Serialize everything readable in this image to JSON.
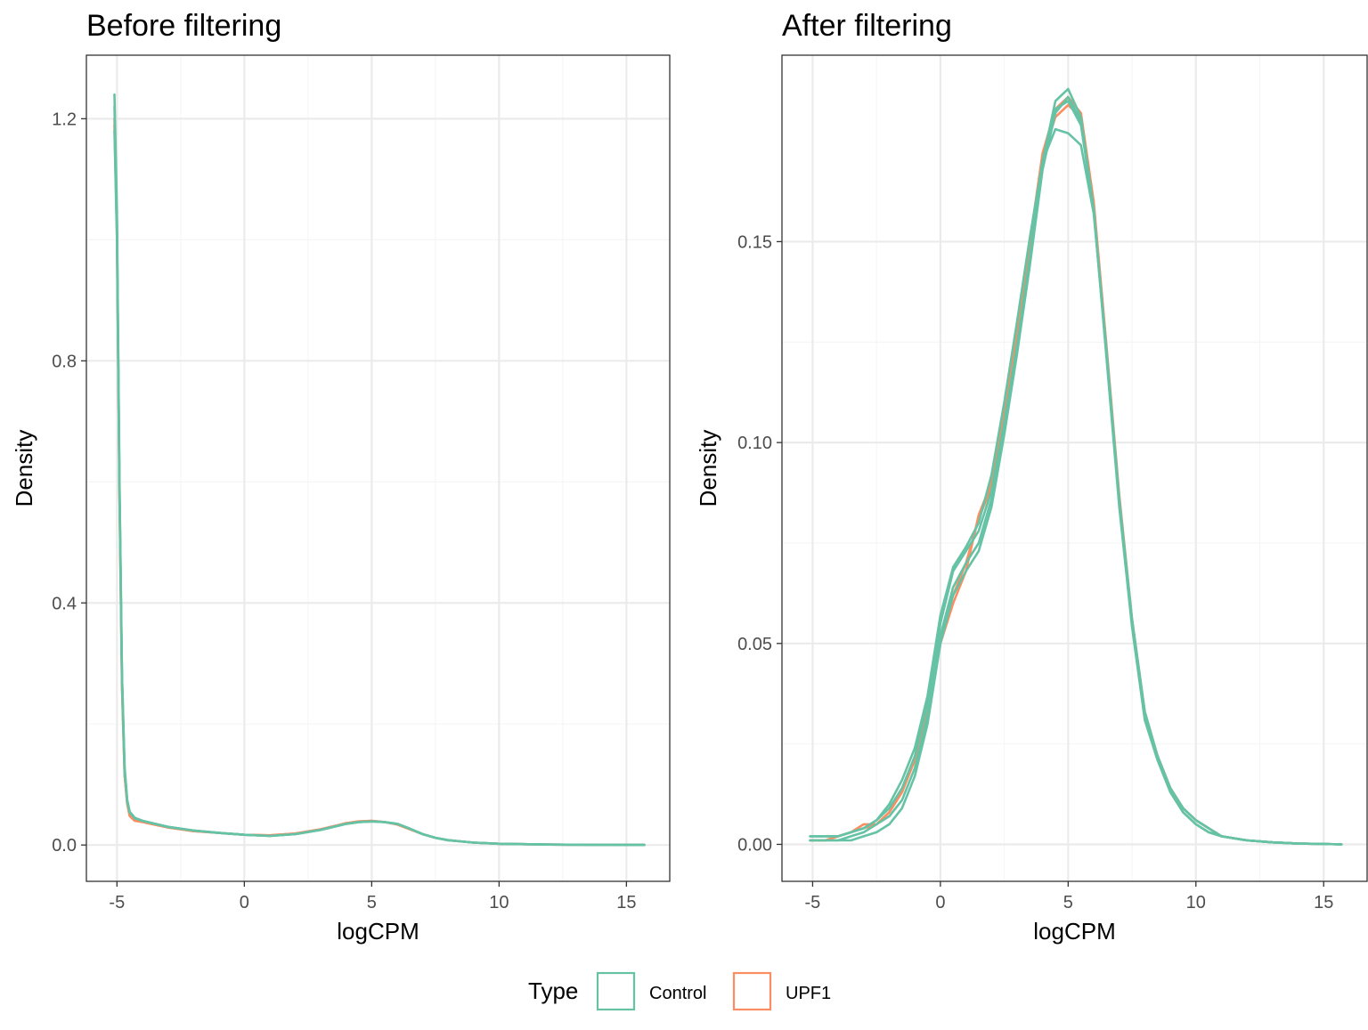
{
  "colors": {
    "Control": "#66c2a5",
    "UPF1": "#fc8d62",
    "grid_major": "#ebebeb",
    "grid_minor": "#f5f5f5",
    "panel_border": "#333333"
  },
  "legend": {
    "title": "Type",
    "position": "bottom",
    "items": [
      "Control",
      "UPF1"
    ]
  },
  "chart_data": [
    {
      "type": "line",
      "title": "Before filtering",
      "xlabel": "logCPM",
      "ylabel": "Density",
      "xlim": [
        -6.2,
        16.7
      ],
      "ylim": [
        -0.06,
        1.305
      ],
      "xticks": [
        -5,
        0,
        5,
        10,
        15
      ],
      "xtick_labels": [
        "-5",
        "0",
        "5",
        "10",
        "15"
      ],
      "yticks": [
        0.0,
        0.4,
        0.8,
        1.2
      ],
      "ytick_labels": [
        "0.0",
        "0.4",
        "0.8",
        "1.2"
      ],
      "grid": true,
      "series": [
        {
          "group": "Control",
          "x": [
            -5.1,
            -5.0,
            -4.9,
            -4.8,
            -4.7,
            -4.6,
            -4.5,
            -4.3,
            -4.0,
            -3.0,
            -2.0,
            -1.0,
            0.0,
            1.0,
            2.0,
            3.0,
            4.0,
            4.5,
            5.0,
            5.5,
            6.0,
            6.5,
            7.0,
            7.5,
            8.0,
            9.0,
            10.0,
            12.0,
            14.0,
            15.7
          ],
          "y": [
            1.24,
            1.05,
            0.6,
            0.28,
            0.13,
            0.075,
            0.055,
            0.045,
            0.04,
            0.03,
            0.024,
            0.02,
            0.017,
            0.015,
            0.018,
            0.025,
            0.035,
            0.038,
            0.039,
            0.038,
            0.035,
            0.027,
            0.018,
            0.012,
            0.008,
            0.004,
            0.002,
            0.0008,
            0.0003,
            0.0001
          ]
        },
        {
          "group": "Control",
          "x": [
            -5.1,
            -5.0,
            -4.9,
            -4.8,
            -4.7,
            -4.6,
            -4.5,
            -4.3,
            -4.0,
            -3.0,
            -2.0,
            -1.0,
            0.0,
            1.0,
            2.0,
            3.0,
            4.0,
            4.5,
            5.0,
            5.5,
            6.0,
            6.5,
            7.0,
            7.5,
            8.0,
            9.0,
            10.0,
            12.0,
            14.0,
            15.7
          ],
          "y": [
            1.18,
            1.0,
            0.58,
            0.27,
            0.12,
            0.072,
            0.054,
            0.044,
            0.04,
            0.03,
            0.024,
            0.02,
            0.017,
            0.015,
            0.018,
            0.025,
            0.035,
            0.038,
            0.039,
            0.038,
            0.035,
            0.027,
            0.018,
            0.012,
            0.008,
            0.004,
            0.002,
            0.0008,
            0.0003,
            0.0001
          ]
        },
        {
          "group": "Control",
          "x": [
            -5.1,
            -5.0,
            -4.9,
            -4.8,
            -4.7,
            -4.6,
            -4.5,
            -4.3,
            -4.0,
            -3.0,
            -2.0,
            -1.0,
            0.0,
            1.0,
            2.0,
            3.0,
            4.0,
            4.5,
            5.0,
            5.5,
            6.0,
            6.5,
            7.0,
            7.5,
            8.0,
            9.0,
            10.0,
            12.0,
            14.0,
            15.7
          ],
          "y": [
            1.22,
            1.03,
            0.59,
            0.28,
            0.125,
            0.074,
            0.055,
            0.045,
            0.04,
            0.03,
            0.024,
            0.02,
            0.017,
            0.015,
            0.018,
            0.025,
            0.035,
            0.038,
            0.039,
            0.038,
            0.035,
            0.027,
            0.018,
            0.012,
            0.008,
            0.004,
            0.002,
            0.0008,
            0.0003,
            0.0001
          ]
        },
        {
          "group": "UPF1",
          "x": [
            -5.1,
            -5.0,
            -4.9,
            -4.8,
            -4.7,
            -4.6,
            -4.5,
            -4.3,
            -4.0,
            -3.0,
            -2.0,
            -1.0,
            0.0,
            1.0,
            2.0,
            3.0,
            4.0,
            4.5,
            5.0,
            5.5,
            6.0,
            6.5,
            7.0,
            7.5,
            8.0,
            9.0,
            10.0,
            12.0,
            14.0,
            15.7
          ],
          "y": [
            1.2,
            1.02,
            0.57,
            0.26,
            0.115,
            0.068,
            0.048,
            0.04,
            0.038,
            0.029,
            0.023,
            0.02,
            0.017,
            0.016,
            0.019,
            0.026,
            0.036,
            0.039,
            0.04,
            0.038,
            0.034,
            0.026,
            0.018,
            0.012,
            0.008,
            0.004,
            0.002,
            0.0008,
            0.0003,
            0.0001
          ]
        },
        {
          "group": "UPF1",
          "x": [
            -5.1,
            -5.0,
            -4.9,
            -4.8,
            -4.7,
            -4.6,
            -4.5,
            -4.3,
            -4.0,
            -3.0,
            -2.0,
            -1.0,
            0.0,
            1.0,
            2.0,
            3.0,
            4.0,
            4.5,
            5.0,
            5.5,
            6.0,
            6.5,
            7.0,
            7.5,
            8.0,
            9.0,
            10.0,
            12.0,
            14.0,
            15.7
          ],
          "y": [
            1.19,
            1.01,
            0.57,
            0.26,
            0.116,
            0.069,
            0.049,
            0.041,
            0.038,
            0.029,
            0.023,
            0.02,
            0.017,
            0.016,
            0.019,
            0.026,
            0.036,
            0.039,
            0.04,
            0.038,
            0.034,
            0.026,
            0.018,
            0.012,
            0.008,
            0.004,
            0.002,
            0.0008,
            0.0003,
            0.0001
          ]
        }
      ]
    },
    {
      "type": "line",
      "title": "After filtering",
      "xlabel": "logCPM",
      "ylabel": "Density",
      "xlim": [
        -6.2,
        16.7
      ],
      "ylim": [
        -0.0092,
        0.1964
      ],
      "xticks": [
        -5,
        0,
        5,
        10,
        15
      ],
      "xtick_labels": [
        "-5",
        "0",
        "5",
        "10",
        "15"
      ],
      "yticks": [
        0.0,
        0.05,
        0.1,
        0.15
      ],
      "ytick_labels": [
        "0.00",
        "0.05",
        "0.10",
        "0.15"
      ],
      "grid": true,
      "series": [
        {
          "group": "Control",
          "x": [
            -5.1,
            -4.5,
            -4.0,
            -3.5,
            -3.0,
            -2.5,
            -2.0,
            -1.5,
            -1.0,
            -0.5,
            0.0,
            0.5,
            1.0,
            1.5,
            2.0,
            2.5,
            3.0,
            3.5,
            4.0,
            4.5,
            5.0,
            5.5,
            6.0,
            6.5,
            7.0,
            7.5,
            8.0,
            8.5,
            9.0,
            9.5,
            10.0,
            10.5,
            11.0,
            12.0,
            13.0,
            14.0,
            15.0,
            15.7
          ],
          "y": [
            0.002,
            0.002,
            0.002,
            0.003,
            0.004,
            0.006,
            0.009,
            0.014,
            0.022,
            0.035,
            0.055,
            0.068,
            0.073,
            0.078,
            0.088,
            0.105,
            0.124,
            0.145,
            0.168,
            0.182,
            0.186,
            0.18,
            0.158,
            0.122,
            0.085,
            0.055,
            0.032,
            0.022,
            0.014,
            0.009,
            0.006,
            0.004,
            0.002,
            0.001,
            0.0005,
            0.0002,
            0.0001,
            0.0
          ],
          "var": [
            0.002,
            0.002,
            0.002,
            0.003,
            0.004,
            0.006,
            0.009,
            0.014,
            0.022,
            0.035,
            0.055,
            0.068,
            0.073,
            0.078,
            0.088,
            0.105,
            0.124,
            0.145,
            0.168,
            0.182,
            0.186,
            0.18,
            0.158,
            0.122,
            0.085,
            0.055,
            0.032,
            0.022,
            0.014,
            0.009,
            0.006,
            0.004,
            0.002,
            0.001,
            0.0005,
            0.0002,
            0.0001,
            0.0
          ]
        },
        {
          "group": "Control",
          "x": [
            -5.1,
            -4.5,
            -4.0,
            -3.5,
            -3.0,
            -2.5,
            -2.0,
            -1.5,
            -1.0,
            -0.5,
            0.0,
            0.5,
            1.0,
            1.5,
            2.0,
            2.5,
            3.0,
            3.5,
            4.0,
            4.5,
            5.0,
            5.5,
            6.0,
            6.5,
            7.0,
            7.5,
            8.0,
            8.5,
            9.0,
            9.5,
            10.0,
            10.5,
            11.0,
            12.0,
            13.0,
            14.0,
            15.0,
            15.7
          ],
          "y": [
            0.001,
            0.001,
            0.001,
            0.002,
            0.003,
            0.005,
            0.007,
            0.011,
            0.019,
            0.032,
            0.052,
            0.064,
            0.07,
            0.075,
            0.086,
            0.104,
            0.124,
            0.146,
            0.17,
            0.185,
            0.188,
            0.181,
            0.158,
            0.121,
            0.084,
            0.054,
            0.031,
            0.021,
            0.013,
            0.008,
            0.005,
            0.003,
            0.002,
            0.001,
            0.0005,
            0.0002,
            0.0001,
            0.0
          ]
        },
        {
          "group": "Control",
          "x": [
            -5.1,
            -4.5,
            -4.0,
            -3.5,
            -3.0,
            -2.5,
            -2.0,
            -1.5,
            -1.0,
            -0.5,
            0.0,
            0.5,
            1.0,
            1.5,
            2.0,
            2.5,
            3.0,
            3.5,
            4.0,
            4.5,
            5.0,
            5.5,
            6.0,
            6.5,
            7.0,
            7.5,
            8.0,
            8.5,
            9.0,
            9.5,
            10.0,
            10.5,
            11.0,
            12.0,
            13.0,
            14.0,
            15.0,
            15.7
          ],
          "y": [
            0.002,
            0.002,
            0.002,
            0.003,
            0.004,
            0.006,
            0.01,
            0.016,
            0.024,
            0.037,
            0.057,
            0.069,
            0.074,
            0.08,
            0.092,
            0.11,
            0.13,
            0.151,
            0.17,
            0.178,
            0.177,
            0.174,
            0.157,
            0.123,
            0.086,
            0.056,
            0.033,
            0.022,
            0.014,
            0.009,
            0.006,
            0.004,
            0.002,
            0.001,
            0.0005,
            0.0002,
            0.0001,
            0.0
          ]
        },
        {
          "group": "Control",
          "x": [
            -5.1,
            -4.5,
            -4.0,
            -3.5,
            -3.0,
            -2.5,
            -2.0,
            -1.5,
            -1.0,
            -0.5,
            0.0,
            0.5,
            1.0,
            1.5,
            2.0,
            2.5,
            3.0,
            3.5,
            4.0,
            4.5,
            5.0,
            5.5,
            6.0,
            6.5,
            7.0,
            7.5,
            8.0,
            8.5,
            9.0,
            9.5,
            10.0,
            10.5,
            11.0,
            12.0,
            13.0,
            14.0,
            15.0,
            15.7
          ],
          "y": [
            0.001,
            0.001,
            0.001,
            0.001,
            0.002,
            0.003,
            0.005,
            0.009,
            0.017,
            0.03,
            0.05,
            0.062,
            0.068,
            0.073,
            0.084,
            0.102,
            0.122,
            0.144,
            0.168,
            0.183,
            0.185,
            0.179,
            0.158,
            0.122,
            0.085,
            0.055,
            0.031,
            0.021,
            0.013,
            0.008,
            0.005,
            0.003,
            0.002,
            0.001,
            0.0005,
            0.0002,
            0.0001,
            0.0
          ]
        },
        {
          "group": "UPF1",
          "x": [
            -5.1,
            -4.5,
            -4.0,
            -3.5,
            -3.0,
            -2.5,
            -2.0,
            -1.5,
            -1.0,
            -0.5,
            0.0,
            0.5,
            1.0,
            1.5,
            2.0,
            2.5,
            3.0,
            3.5,
            4.0,
            4.5,
            5.0,
            5.5,
            6.0,
            6.5,
            7.0,
            7.5,
            8.0,
            8.5,
            9.0,
            9.5,
            10.0,
            10.5,
            11.0,
            12.0,
            13.0,
            14.0,
            15.0,
            15.7
          ],
          "y": [
            0.001,
            0.001,
            0.002,
            0.003,
            0.005,
            0.005,
            0.008,
            0.013,
            0.021,
            0.033,
            0.05,
            0.06,
            0.068,
            0.082,
            0.09,
            0.108,
            0.128,
            0.15,
            0.172,
            0.183,
            0.186,
            0.182,
            0.16,
            0.124,
            0.087,
            0.056,
            0.033,
            0.022,
            0.014,
            0.009,
            0.006,
            0.004,
            0.002,
            0.001,
            0.0005,
            0.0002,
            0.0001,
            0.0
          ]
        },
        {
          "group": "UPF1",
          "x": [
            -5.1,
            -4.5,
            -4.0,
            -3.5,
            -3.0,
            -2.5,
            -2.0,
            -1.5,
            -1.0,
            -0.5,
            0.0,
            0.5,
            1.0,
            1.5,
            2.0,
            2.5,
            3.0,
            3.5,
            4.0,
            4.5,
            5.0,
            5.5,
            6.0,
            6.5,
            7.0,
            7.5,
            8.0,
            8.5,
            9.0,
            9.5,
            10.0,
            10.5,
            11.0,
            12.0,
            13.0,
            14.0,
            15.0,
            15.7
          ],
          "y": [
            0.001,
            0.001,
            0.002,
            0.003,
            0.004,
            0.005,
            0.008,
            0.013,
            0.021,
            0.034,
            0.052,
            0.062,
            0.07,
            0.081,
            0.089,
            0.107,
            0.127,
            0.149,
            0.171,
            0.181,
            0.184,
            0.181,
            0.159,
            0.123,
            0.086,
            0.055,
            0.032,
            0.022,
            0.014,
            0.009,
            0.006,
            0.004,
            0.002,
            0.001,
            0.0005,
            0.0002,
            0.0001,
            0.0
          ]
        }
      ]
    }
  ]
}
